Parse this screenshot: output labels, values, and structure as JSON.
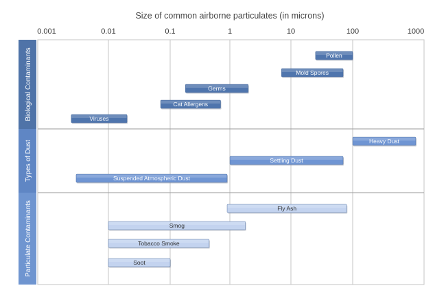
{
  "chart_data": {
    "type": "bar",
    "orientation": "horizontal-range",
    "title": "Size of common airborne particulates (in microns)",
    "x_scale": "log",
    "xlim": [
      0.001,
      1000
    ],
    "x_ticks": [
      {
        "value": 0.001,
        "label": "0.001"
      },
      {
        "value": 0.01,
        "label": "0.01"
      },
      {
        "value": 0.1,
        "label": "0.1"
      },
      {
        "value": 1,
        "label": "1"
      },
      {
        "value": 10,
        "label": "10"
      },
      {
        "value": 100,
        "label": "100"
      },
      {
        "value": 1000,
        "label": "1000"
      }
    ],
    "grid": true,
    "groups": [
      {
        "name": "Biological Contaminants",
        "color_band": "#4f73a8",
        "items": [
          {
            "label": "Pollen",
            "min": 25,
            "max": 100,
            "color": "#4f75ad",
            "text_color": "#ffffff"
          },
          {
            "label": "Mold Spores",
            "min": 7,
            "max": 70,
            "color": "#4f75ad",
            "text_color": "#ffffff"
          },
          {
            "label": "Germs",
            "min": 0.18,
            "max": 2,
            "color": "#4f75ad",
            "text_color": "#ffffff"
          },
          {
            "label": "Cat Allergens",
            "min": 0.07,
            "max": 0.7,
            "color": "#4f75ad",
            "text_color": "#ffffff"
          },
          {
            "label": "Viruses",
            "min": 0.0025,
            "max": 0.02,
            "color": "#4f75ad",
            "text_color": "#ffffff"
          }
        ]
      },
      {
        "name": "Types of Dust",
        "color_band": "#5f86c4",
        "items": [
          {
            "label": "Heavy Dust",
            "min": 100,
            "max": 1000,
            "color": "#6f95d3",
            "text_color": "#ffffff"
          },
          {
            "label": "Settling Dust",
            "min": 1,
            "max": 70,
            "color": "#6f95d3",
            "text_color": "#ffffff"
          },
          {
            "label": "Suspended Atmospheric Dust",
            "min": 0.003,
            "max": 0.9,
            "color": "#6f95d3",
            "text_color": "#ffffff"
          }
        ]
      },
      {
        "name": "Particulate Contaminants",
        "color_band": "#6f95d0",
        "items": [
          {
            "label": "Fly Ash",
            "min": 0.9,
            "max": 80,
            "color": "#c3d3ef",
            "text_color": "#333333"
          },
          {
            "label": "Smog",
            "min": 0.01,
            "max": 1.8,
            "color": "#c3d3ef",
            "text_color": "#333333"
          },
          {
            "label": "Tobacco Smoke",
            "min": 0.01,
            "max": 0.45,
            "color": "#c3d3ef",
            "text_color": "#333333"
          },
          {
            "label": "Soot",
            "min": 0.01,
            "max": 0.1,
            "color": "#c3d3ef",
            "text_color": "#333333"
          }
        ]
      }
    ]
  }
}
